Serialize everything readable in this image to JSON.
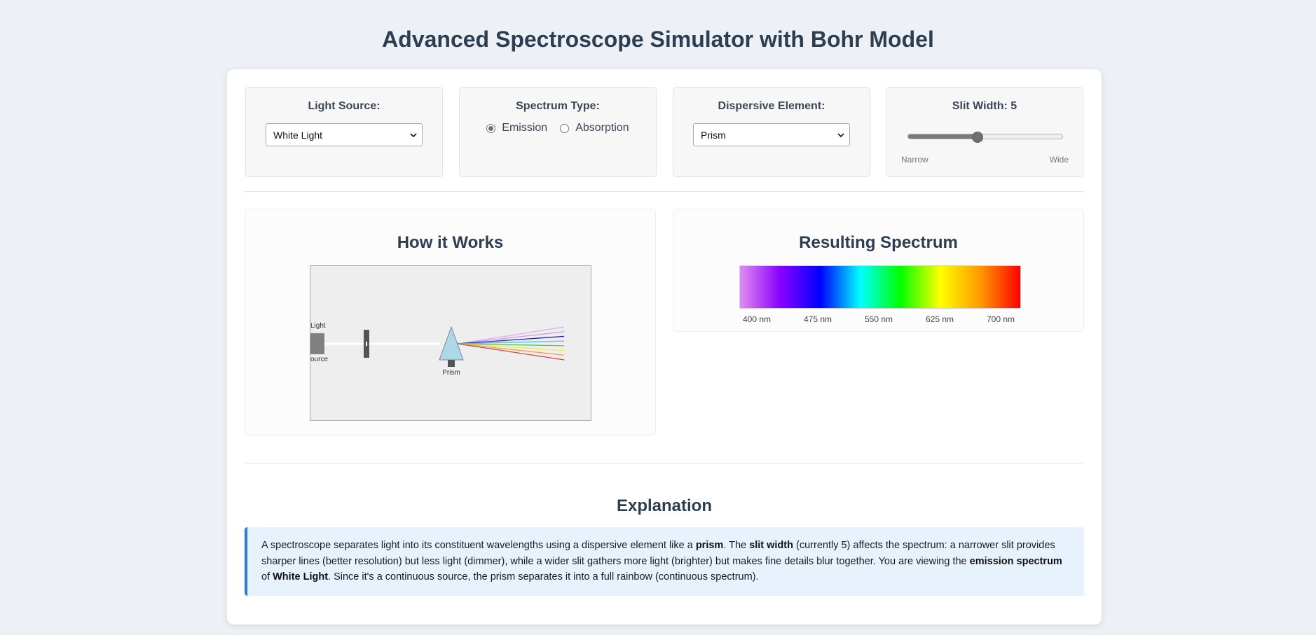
{
  "page": {
    "title": "Advanced Spectroscope Simulator with Bohr Model"
  },
  "controls": {
    "light_source": {
      "label": "Light Source:",
      "selected": "White Light"
    },
    "spectrum_type": {
      "label": "Spectrum Type:",
      "options": [
        "Emission",
        "Absorption"
      ],
      "selected": "Emission"
    },
    "dispersive_element": {
      "label": "Dispersive Element:",
      "selected": "Prism"
    },
    "slit_width": {
      "label": "Slit Width: 5",
      "value": 5,
      "fraction": 0.45,
      "min_label": "Narrow",
      "max_label": "Wide"
    }
  },
  "how_it_works": {
    "title": "How it Works",
    "light_label_line1": "Light",
    "light_label_line2": "ource",
    "prism_label": "Prism"
  },
  "resulting_spectrum": {
    "title": "Resulting Spectrum",
    "ticks": [
      "400 nm",
      "475 nm",
      "550 nm",
      "625 nm",
      "700 nm"
    ]
  },
  "explanation": {
    "title": "Explanation",
    "t1": "A spectroscope separates light into its constituent wavelengths using a dispersive element like a ",
    "b1": "prism",
    "t2": ". The ",
    "b2": "slit width",
    "t3": " (currently 5) affects the spectrum: a narrower slit provides sharper lines (better resolution) but less light (dimmer), while a wider slit gathers more light (brighter) but makes fine details blur together. You are viewing the ",
    "b3": "emission spectrum",
    "t4": " of ",
    "b4": "White Light",
    "t5": ". Since it's a continuous source, the prism separates it into a full rainbow (continuous spectrum)."
  },
  "colors": {
    "accent": "#2a7ee0",
    "spectrum_gradient": [
      "#e08cf0",
      "#8a00ff",
      "#0000ff",
      "#00ffff",
      "#00ff00",
      "#ffff00",
      "#ff9900",
      "#ff0000"
    ],
    "rays": [
      "#e8a8f0",
      "#c89be8",
      "#2020c0",
      "#5fb8f0",
      "#40d060",
      "#f0f040",
      "#f0a040",
      "#e84040"
    ]
  }
}
